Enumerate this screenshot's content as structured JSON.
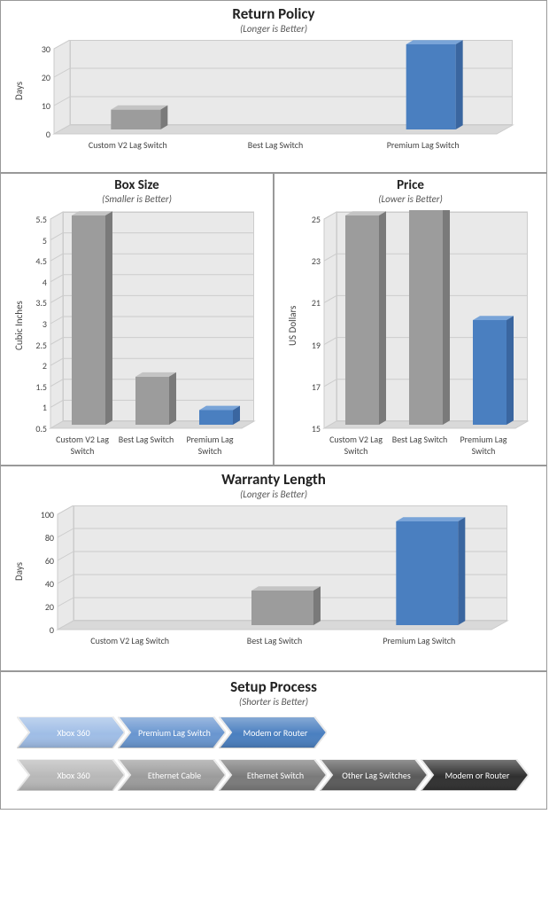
{
  "colors": {
    "gray_front": "#9c9c9c",
    "gray_top": "#c4c4c4",
    "gray_side": "#7a7a7a",
    "blue_front": "#4a7fc0",
    "blue_top": "#79a4d8",
    "blue_side": "#3a66a0",
    "floor": "#d9d9d9",
    "wall": "#e9e9e9",
    "grid": "#cccccc",
    "border": "#999999",
    "chev_blue_stops": [
      "#9fbde6",
      "#6996d0",
      "#4a7fc0",
      "#3a66a0",
      "#2a4e80"
    ],
    "chev_gray_stops": [
      "#b8b8b8",
      "#9c9c9c",
      "#7a7a7a",
      "#5a5a5a",
      "#2f2f2f"
    ],
    "chev_outline": "#e8e8e8"
  },
  "charts": {
    "return_policy": {
      "title": "Return Policy",
      "subtitle": "(Longer is Better)",
      "ylabel": "Days",
      "categories": [
        "Custom V2 Lag Switch",
        "Best Lag Switch",
        "Premium Lag Switch"
      ],
      "values": [
        7,
        0,
        30
      ],
      "series_colors": [
        "gray",
        "gray",
        "blue"
      ],
      "ymin": 0,
      "ymax": 30,
      "ystep": 10,
      "title_fontsize": 17,
      "subtitle_fontsize": 11
    },
    "box_size": {
      "title": "Box Size",
      "subtitle": "(Smaller is Better)",
      "ylabel": "Cubic Inches",
      "categories": [
        "Custom V2 Lag Switch",
        "Best Lag Switch",
        "Premium Lag Switch"
      ],
      "values": [
        5.5,
        1.65,
        0.85
      ],
      "series_colors": [
        "gray",
        "gray",
        "blue"
      ],
      "ymin": 0.5,
      "ymax": 5.5,
      "ystep": 0.5,
      "title_fontsize": 15,
      "subtitle_fontsize": 11
    },
    "price": {
      "title": "Price",
      "subtitle": "(Lower is Better)",
      "ylabel": "US Dollars",
      "categories": [
        "Custom V2 Lag Switch",
        "Best Lag Switch",
        "Premium Lag Switch"
      ],
      "values": [
        25,
        25.5,
        20
      ],
      "series_colors": [
        "gray",
        "gray",
        "blue"
      ],
      "ymin": 15,
      "ymax": 25,
      "ystep": 2,
      "title_fontsize": 15,
      "subtitle_fontsize": 11
    },
    "warranty": {
      "title": "Warranty Length",
      "subtitle": "(Longer is Better)",
      "ylabel": "Days",
      "categories": [
        "Custom V2 Lag Switch",
        "Best Lag Switch",
        "Premium Lag Switch"
      ],
      "values": [
        0,
        30,
        90
      ],
      "series_colors": [
        "gray",
        "gray",
        "blue"
      ],
      "ymin": 0,
      "ymax": 100,
      "ystep": 20,
      "title_fontsize": 17,
      "subtitle_fontsize": 11
    }
  },
  "setup": {
    "title": "Setup Process",
    "subtitle": "(Shorter is Better)",
    "title_fontsize": 17,
    "subtitle_fontsize": 11,
    "rows": [
      {
        "palette": "blue",
        "steps": [
          "Xbox 360",
          "Premium Lag Switch",
          "Modem or Router"
        ]
      },
      {
        "palette": "gray",
        "steps": [
          "Xbox 360",
          "Ethernet Cable",
          "Ethernet Switch",
          "Other Lag Switches",
          "Modem or Router"
        ]
      }
    ],
    "chev_width": 108,
    "chev_gap": 6,
    "chev_height": 36,
    "notch": 14
  }
}
